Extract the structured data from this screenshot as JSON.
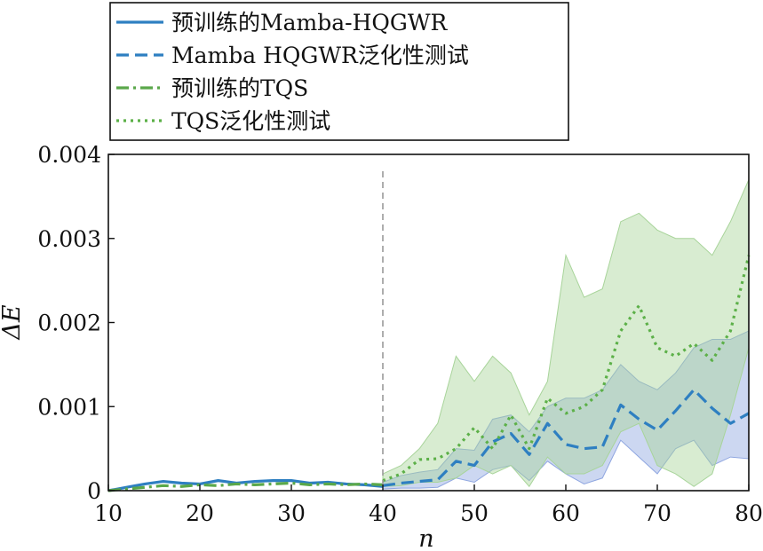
{
  "chart_data": {
    "type": "line",
    "xlabel": "n",
    "ylabel": "ΔE",
    "xlim": [
      10,
      80
    ],
    "ylim": [
      0,
      0.004
    ],
    "x_ticks": [
      10,
      20,
      30,
      40,
      50,
      60,
      70,
      80
    ],
    "x_tick_labels": [
      "10",
      "20",
      "30",
      "40",
      "50",
      "60",
      "70",
      "80"
    ],
    "y_ticks": [
      0,
      0.001,
      0.002,
      0.003,
      0.004
    ],
    "y_tick_labels": [
      "0",
      "0.001",
      "0.002",
      "0.003",
      "0.004"
    ],
    "vline_x": 40,
    "legend_position": "top-left, above plot",
    "series": [
      {
        "name": "预训练的Mamba-HQGWR",
        "color": "#2e7fc1",
        "style": "solid",
        "x": [
          10,
          12,
          14,
          16,
          18,
          20,
          22,
          24,
          26,
          28,
          30,
          32,
          34,
          36,
          38,
          40
        ],
        "values": [
          0.0,
          4e-05,
          8e-05,
          0.00011,
          9e-05,
          8e-05,
          0.00012,
          9e-05,
          0.00011,
          0.00012,
          0.00012,
          9e-05,
          0.0001,
          8e-05,
          7e-05,
          5e-05
        ]
      },
      {
        "name": "Mamba HQGWR泛化性测试",
        "color": "#2e7fc1",
        "style": "dashed",
        "band_color": "#8fa6e0",
        "x": [
          40,
          42,
          44,
          46,
          48,
          50,
          52,
          54,
          56,
          58,
          60,
          62,
          64,
          66,
          68,
          70,
          72,
          74,
          76,
          78,
          80
        ],
        "values": [
          6e-05,
          9e-05,
          0.00011,
          0.00013,
          0.00035,
          0.0003,
          0.00058,
          0.00068,
          0.00043,
          0.0008,
          0.00055,
          0.0005,
          0.00052,
          0.00102,
          0.00085,
          0.00072,
          0.00095,
          0.0012,
          0.00098,
          0.0008,
          0.00092
        ],
        "band_lower": [
          2e-05,
          3e-05,
          3e-05,
          4e-05,
          0.00015,
          0.0001,
          0.00025,
          0.0003,
          0.00012,
          0.00035,
          0.0002,
          8e-05,
          0.00015,
          0.0006,
          0.0004,
          0.0002,
          0.0005,
          0.0006,
          0.0003,
          0.0004,
          0.00038
        ],
        "band_upper": [
          0.0001,
          0.00018,
          0.00022,
          0.00025,
          0.0005,
          0.00048,
          0.00085,
          0.0009,
          0.0007,
          0.001,
          0.0011,
          0.0011,
          0.0012,
          0.0015,
          0.0013,
          0.0012,
          0.0014,
          0.0017,
          0.0018,
          0.0018,
          0.0019
        ]
      },
      {
        "name": "预训练的TQS",
        "color": "#5aa84a",
        "style": "dashdot",
        "x": [
          10,
          12,
          14,
          16,
          18,
          20,
          22,
          24,
          26,
          28,
          30,
          32,
          34,
          36,
          38,
          40
        ],
        "values": [
          0.0,
          2e-05,
          4e-05,
          6e-05,
          5e-05,
          7e-05,
          6e-05,
          8e-05,
          7e-05,
          8e-05,
          9e-05,
          7e-05,
          8e-05,
          7e-05,
          8e-05,
          7e-05
        ]
      },
      {
        "name": "TQS泛化性测试",
        "color": "#5cb048",
        "style": "dotted",
        "band_color": "#a8d49a",
        "x": [
          40,
          42,
          44,
          46,
          48,
          50,
          52,
          54,
          56,
          58,
          60,
          62,
          64,
          66,
          68,
          70,
          72,
          74,
          76,
          78,
          80
        ],
        "values": [
          0.00012,
          0.0002,
          0.00037,
          0.00038,
          0.0005,
          0.00075,
          0.0005,
          0.0009,
          0.0005,
          0.0011,
          0.00092,
          0.001,
          0.0012,
          0.0019,
          0.0022,
          0.0017,
          0.0016,
          0.00175,
          0.00155,
          0.0019,
          0.0028
        ],
        "band_lower": [
          5e-05,
          6e-05,
          0.0001,
          0.0001,
          0.00015,
          0.0003,
          0.0002,
          0.0003,
          5e-05,
          0.0004,
          0.0002,
          0.0002,
          0.0003,
          0.0007,
          0.0008,
          0.0003,
          0.0002,
          5e-05,
          0.0002,
          0.0009,
          0.0017
        ],
        "band_upper": [
          0.0002,
          0.0003,
          0.0005,
          0.0008,
          0.0016,
          0.0013,
          0.0016,
          0.0014,
          0.0009,
          0.0013,
          0.0028,
          0.0023,
          0.0024,
          0.0032,
          0.0033,
          0.0031,
          0.003,
          0.003,
          0.0028,
          0.0032,
          0.0037
        ]
      }
    ]
  },
  "legend": {
    "items": [
      "预训练的Mamba-HQGWR",
      "Mamba HQGWR泛化性测试",
      "预训练的TQS",
      "TQS泛化性测试"
    ]
  }
}
